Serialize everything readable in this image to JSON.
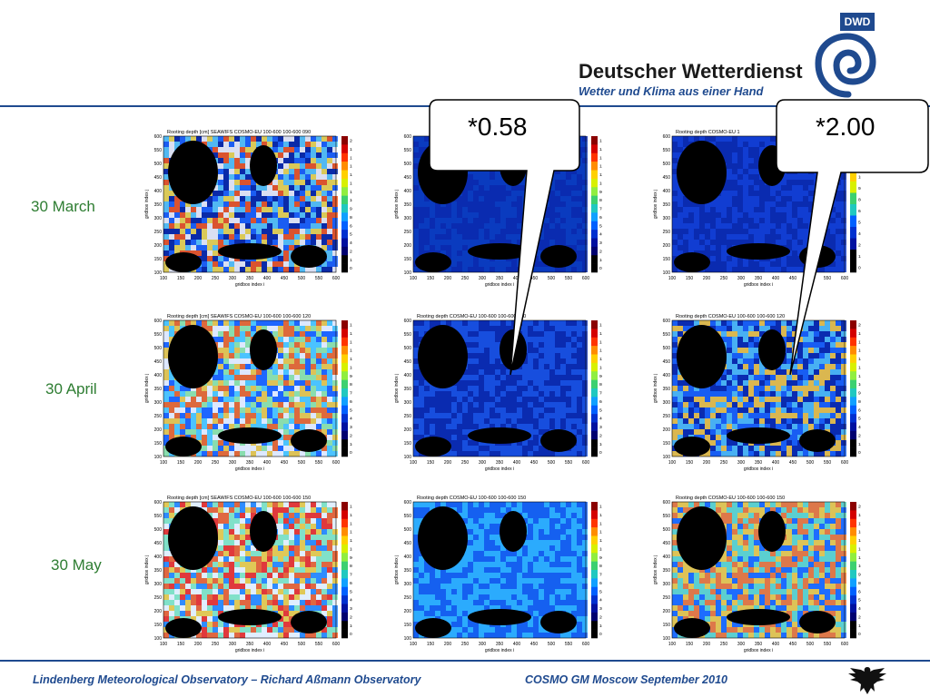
{
  "header": {
    "brand_name": "Deutscher Wetterdienst",
    "brand_tagline": "Wetter und Klima aus einer Hand",
    "logo_abbrev": "DWD"
  },
  "rows": [
    {
      "label": "30 March"
    },
    {
      "label": "30 April"
    },
    {
      "label": "30 May"
    }
  ],
  "maps": [
    {
      "title": "Rooting depth [cm] SEAWIFS  COSMO-EU 100-600 100-600 090",
      "scale": [
        "200",
        "186",
        "173",
        "160",
        "146",
        "133",
        "120",
        "106",
        "93",
        "80",
        "66",
        "53",
        "40",
        "26",
        "13",
        "0"
      ]
    },
    {
      "title": "",
      "scale": [
        "150",
        "140",
        "130",
        "120",
        "110",
        "100",
        "90",
        "80",
        "70",
        "60",
        "50",
        "40",
        "30",
        "20",
        "10",
        "0"
      ]
    },
    {
      "title": "Rooting depth COSMO-EU 1",
      "scale": [
        "146",
        "133",
        "120",
        "106",
        "93",
        "80",
        "66",
        "53",
        "40",
        "26",
        "13",
        "0"
      ]
    },
    {
      "title": "Rooting depth [cm] SEAWIFS  COSMO-EU 100-600 100-600 120",
      "scale": [
        "150",
        "140",
        "130",
        "120",
        "110",
        "100",
        "90",
        "80",
        "70",
        "60",
        "50",
        "40",
        "30",
        "20",
        "10",
        "0"
      ]
    },
    {
      "title": "Rooting depth COSMO-EU 100-600 100-600 120",
      "scale": [
        "150",
        "140",
        "130",
        "120",
        "110",
        "100",
        "90",
        "80",
        "70",
        "60",
        "50",
        "40",
        "30",
        "20",
        "10",
        "0"
      ]
    },
    {
      "title": "Rooting depth COSMO-EU 100-600 100-600 120",
      "scale": [
        "200",
        "186",
        "173",
        "160",
        "146",
        "133",
        "120",
        "106",
        "93",
        "80",
        "66",
        "53",
        "40",
        "26",
        "13",
        "0"
      ]
    },
    {
      "title": "Rooting depth [cm] SEAWIFS  COSMO-EU 100-600 100-600 150",
      "scale": [
        "150",
        "140",
        "130",
        "120",
        "110",
        "100",
        "90",
        "80",
        "70",
        "60",
        "50",
        "40",
        "30",
        "20",
        "10",
        "0"
      ]
    },
    {
      "title": "Rooting depth COSMO-EU 100-600 100-600 150",
      "scale": [
        "150",
        "140",
        "130",
        "120",
        "110",
        "100",
        "90",
        "80",
        "70",
        "60",
        "50",
        "40",
        "30",
        "20",
        "10",
        "0"
      ]
    },
    {
      "title": "Rooting depth COSMO-EU 100-600 100-600 150",
      "scale": [
        "200",
        "186",
        "173",
        "160",
        "146",
        "133",
        "120",
        "106",
        "93",
        "80",
        "66",
        "53",
        "40",
        "26",
        "13",
        "0"
      ]
    }
  ],
  "axes": {
    "y_ticks": [
      "600",
      "550",
      "500",
      "450",
      "400",
      "350",
      "300",
      "250",
      "200",
      "150",
      "100"
    ],
    "x_ticks": [
      "100",
      "150",
      "200",
      "250",
      "300",
      "350",
      "400",
      "450",
      "500",
      "550",
      "600"
    ],
    "x_label": "gridbox index i",
    "y_label": "gridbox index j"
  },
  "callouts": [
    {
      "text": "*0.58"
    },
    {
      "text": "*2.00"
    }
  ],
  "footer": {
    "left": "Lindenberg Meteorological Observatory – Richard Aßmann Observatory",
    "right": "COSMO GM Moscow September 2010"
  }
}
